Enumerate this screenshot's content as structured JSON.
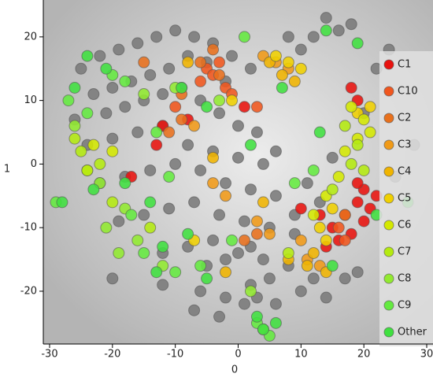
{
  "chart_data": {
    "type": "scatter",
    "x_label": "0",
    "y_label": "1",
    "xlim": [
      -31,
      31
    ],
    "ylim": [
      -28.3,
      25.8
    ],
    "xticks": [
      -30,
      -20,
      -10,
      0,
      10,
      20,
      30
    ],
    "yticks": [
      -20,
      -10,
      0,
      10,
      20
    ],
    "legend": "right",
    "series": [
      {
        "color": "#7a7a7a",
        "x": [
          -25,
          -22,
          -19,
          -16,
          -13,
          -10,
          -7,
          -4,
          -1,
          2,
          -23,
          -20,
          -17,
          -14,
          -11,
          -8,
          -5,
          -2,
          -26,
          -21,
          -18,
          -15,
          -12,
          -9,
          -6,
          -3,
          0,
          3,
          -24,
          -20,
          -16,
          -12,
          -8,
          -4,
          0,
          4,
          -22,
          -18,
          -14,
          -10,
          -6,
          -2,
          2,
          6,
          -19,
          -15,
          -11,
          -7,
          -3,
          1,
          5,
          9,
          -12,
          -8,
          -4,
          0,
          4,
          8,
          12,
          -6,
          -2,
          2,
          6,
          10,
          14,
          16,
          18,
          12,
          14,
          10,
          8,
          6,
          20,
          22,
          24,
          15,
          11,
          13,
          9,
          -7,
          -3,
          1,
          3,
          5,
          -20,
          -12,
          -5,
          -2,
          2,
          28,
          25,
          17,
          19
        ],
        "y": [
          15,
          17,
          18,
          19,
          20,
          21,
          20,
          19,
          17,
          15,
          11,
          12,
          13,
          14,
          15,
          17,
          16,
          13,
          7,
          8,
          9,
          10,
          11,
          12,
          10,
          8,
          6,
          5,
          3,
          4,
          5,
          6,
          3,
          2,
          1,
          0,
          -3,
          -2,
          -1,
          0,
          -1,
          -3,
          -4,
          -5,
          -9,
          -8,
          -7,
          -6,
          -8,
          -9,
          -10,
          -11,
          -14,
          -13,
          -12,
          -14,
          -15,
          -16,
          -18,
          -20,
          -21,
          -19,
          -22,
          -20,
          -21,
          21,
          22,
          20,
          23,
          18,
          20,
          2,
          8,
          15,
          18,
          1,
          -3,
          -6,
          -8,
          -23,
          -24,
          -22,
          -21,
          -18,
          -18,
          -19,
          -16,
          -15,
          -13,
          3,
          -2,
          -18,
          -17
        ]
      },
      {
        "name": "C1",
        "color": "#e8120e",
        "x": [
          15,
          17,
          19,
          20,
          21,
          18,
          16,
          14,
          20,
          22,
          19,
          13,
          -12,
          -8,
          -17,
          -13,
          1,
          10,
          18,
          19
        ],
        "y": [
          -10,
          -8,
          -6,
          -4,
          -7,
          -11,
          -12,
          -13,
          -9,
          -5,
          -3,
          -8,
          6,
          7,
          -2,
          3,
          9,
          -7,
          12,
          10
        ]
      },
      {
        "name": "C10",
        "color": "#f0561e",
        "x": [
          -5,
          -3,
          -4,
          -6,
          -2,
          -1,
          16,
          17,
          3,
          -10
        ],
        "y": [
          15,
          16,
          14,
          13,
          12,
          11,
          -10,
          -12,
          9,
          9
        ]
      },
      {
        "name": "C2",
        "color": "#e8701c",
        "x": [
          -6,
          -4,
          -3,
          -9,
          -15,
          3,
          1,
          17,
          -9,
          -11
        ],
        "y": [
          16,
          18,
          14,
          11,
          16,
          -11,
          -12,
          -8,
          7,
          5
        ]
      },
      {
        "name": "C3",
        "color": "#f09a18",
        "x": [
          4,
          6,
          8,
          -7,
          11,
          13,
          5,
          10,
          -4,
          -2,
          3
        ],
        "y": [
          17,
          16,
          15,
          6,
          -15,
          -16,
          -11,
          -12,
          -3,
          -5,
          -9
        ]
      },
      {
        "name": "C4",
        "color": "#f0b400",
        "x": [
          5,
          7,
          9,
          12,
          11,
          14,
          8,
          -2,
          -8,
          4,
          -4
        ],
        "y": [
          16,
          14,
          13,
          -14,
          -16,
          -17,
          -15,
          -17,
          16,
          -6,
          1
        ]
      },
      {
        "name": "C5",
        "color": "#f0d000",
        "x": [
          6,
          8,
          10,
          14,
          13,
          15,
          19,
          21,
          -1,
          -7
        ],
        "y": [
          17,
          16,
          15,
          -12,
          -10,
          -7,
          8,
          9,
          10,
          -12
        ]
      },
      {
        "name": "C6",
        "color": "#d4e800",
        "x": [
          18,
          20,
          19,
          17,
          21,
          12,
          14,
          16,
          -23,
          -20,
          -24
        ],
        "y": [
          9,
          7,
          4,
          2,
          5,
          -8,
          -5,
          -2,
          3,
          2,
          -1
        ]
      },
      {
        "name": "C7",
        "color": "#b4ea10",
        "x": [
          17,
          19,
          18,
          20,
          15,
          -22,
          -25,
          -26,
          -20,
          -14,
          -24,
          8
        ],
        "y": [
          6,
          3,
          0,
          -1,
          -4,
          0,
          2,
          4,
          -6,
          -10,
          -1,
          -14
        ]
      },
      {
        "name": "C8",
        "color": "#92ea30",
        "x": [
          -22,
          -18,
          -21,
          -16,
          -19,
          -12,
          -26,
          2,
          -3,
          -15,
          -10,
          4
        ],
        "y": [
          -3,
          -7,
          -10,
          -12,
          -14,
          -16,
          6,
          -20,
          10,
          11,
          12,
          -26
        ]
      },
      {
        "name": "C9",
        "color": "#64ea40",
        "x": [
          -24,
          -27,
          -20,
          -18,
          -13,
          -11,
          -17,
          -15,
          -10,
          1,
          -1,
          9,
          12,
          -6,
          3,
          5,
          -29
        ],
        "y": [
          8,
          10,
          14,
          13,
          5,
          -2,
          -8,
          -14,
          -17,
          20,
          -12,
          -3,
          -1,
          -16,
          -25,
          -27,
          -6
        ]
      },
      {
        "name": "Other",
        "color": "#40e040",
        "x": [
          -24,
          -21,
          -26,
          -23,
          -18,
          -14,
          -12,
          -8,
          -5,
          3,
          4,
          6,
          14,
          19,
          7,
          13,
          15,
          22,
          -5,
          -9,
          2,
          -28,
          27,
          -13
        ],
        "y": [
          17,
          15,
          12,
          -4,
          -3,
          -6,
          -13,
          -11,
          -18,
          -24,
          -26,
          -25,
          21,
          19,
          12,
          5,
          -16,
          -8,
          9,
          12,
          3,
          -6,
          -6,
          -17
        ]
      }
    ]
  }
}
